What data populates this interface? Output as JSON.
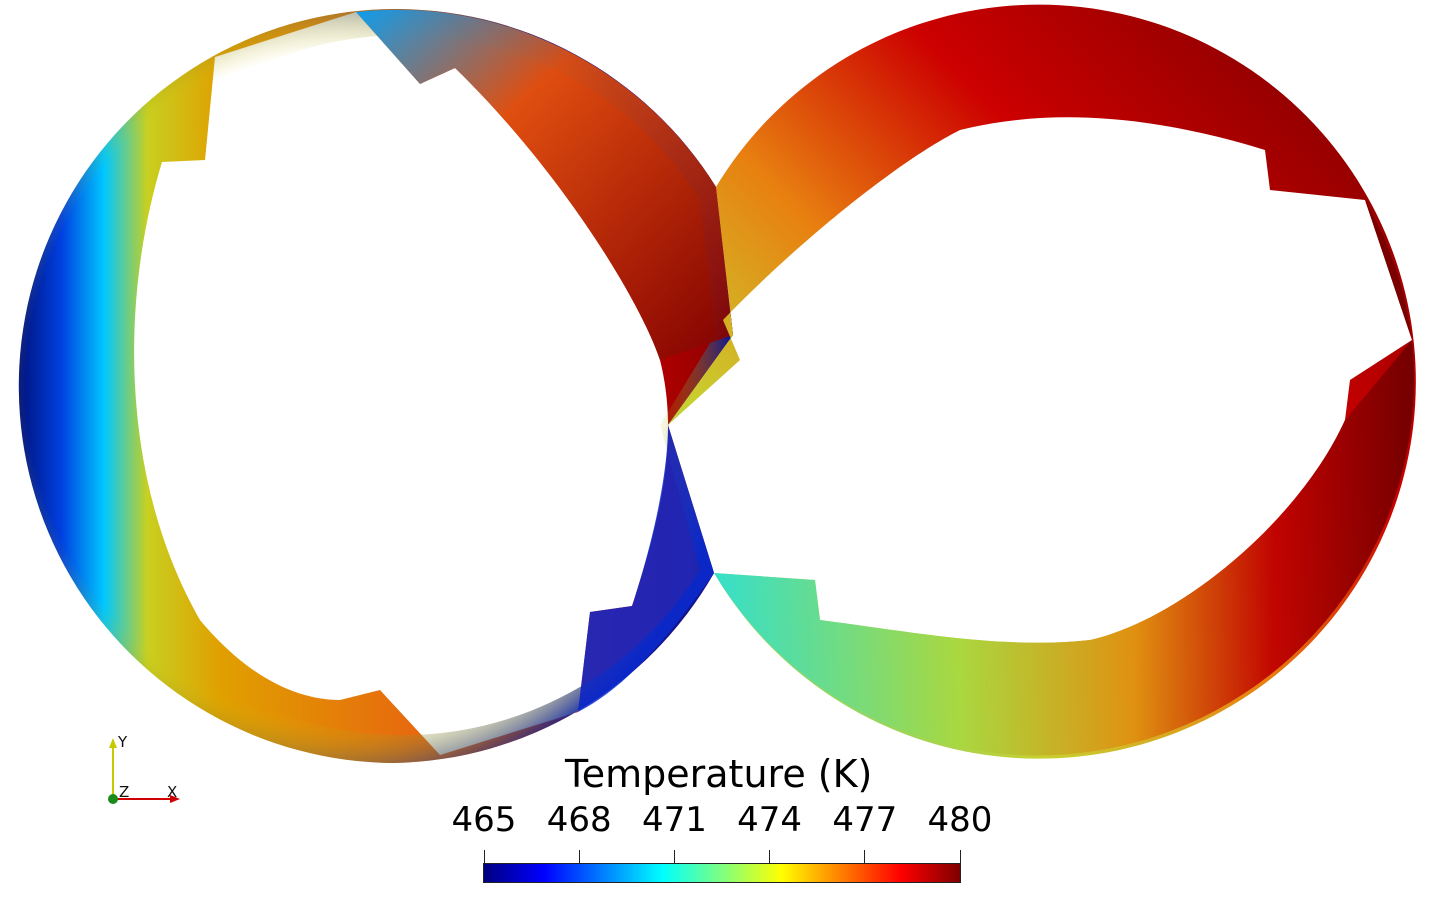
{
  "legend": {
    "title": "Temperature (K)",
    "min": 465,
    "max": 480,
    "ticks": [
      "465",
      "468",
      "471",
      "474",
      "477",
      "480"
    ],
    "colormap": [
      "#00007f",
      "#0000ff",
      "#007fff",
      "#00ffff",
      "#7fff7f",
      "#ffff00",
      "#ff7f00",
      "#ff0000",
      "#7f0000"
    ]
  },
  "orientation_axes": {
    "y": "Y",
    "z": "Z",
    "x": "X"
  },
  "colors": {
    "low": "#0a1aa8",
    "mid": "#c8d020",
    "high": "#8a0000"
  }
}
